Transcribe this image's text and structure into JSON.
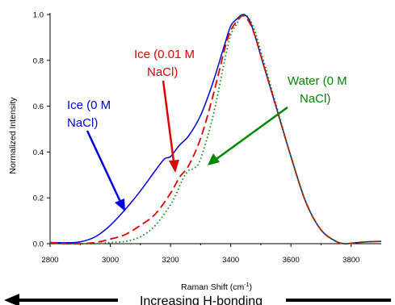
{
  "chart_data": {
    "type": "line",
    "title": "",
    "xlabel_main": "Raman Shift (cm",
    "xlabel_sup": "-1",
    "xlabel_end": ")",
    "ylabel": "Normalized Intensity",
    "xlim": [
      2800,
      3900
    ],
    "ylim": [
      0,
      1.0
    ],
    "xticks": [
      2800,
      3000,
      3200,
      3400,
      3600,
      3800
    ],
    "yticks": [
      0.0,
      0.2,
      0.4,
      0.6,
      0.8,
      1.0
    ],
    "xtick_labels": [
      "2800",
      "3000",
      "3200",
      "3400",
      "3600",
      "3800"
    ],
    "ytick_labels": [
      "0.0",
      "0.2",
      "0.4",
      "0.6",
      "0.8",
      "1.0"
    ],
    "series": [
      {
        "name": "Ice (0 M NaCl)",
        "color": "#0000dd",
        "style": "solid",
        "x": [
          2800,
          2850,
          2900,
          2950,
          3000,
          3050,
          3100,
          3150,
          3180,
          3200,
          3230,
          3260,
          3300,
          3340,
          3380,
          3400,
          3420,
          3440,
          3460,
          3480,
          3500,
          3550,
          3600,
          3650,
          3700,
          3750,
          3780,
          3800,
          3850,
          3900
        ],
        "y": [
          0.005,
          0.004,
          0.008,
          0.03,
          0.08,
          0.15,
          0.23,
          0.32,
          0.37,
          0.38,
          0.43,
          0.47,
          0.56,
          0.7,
          0.87,
          0.95,
          0.98,
          1.0,
          0.98,
          0.91,
          0.82,
          0.6,
          0.38,
          0.18,
          0.06,
          0.01,
          0.0,
          0.002,
          0.008,
          0.01
        ]
      },
      {
        "name": "Ice (0.01 M NaCl)",
        "color": "#dd0000",
        "style": "dashed",
        "x": [
          2800,
          2850,
          2900,
          2950,
          3000,
          3050,
          3100,
          3150,
          3200,
          3230,
          3260,
          3300,
          3340,
          3380,
          3400,
          3420,
          3440,
          3460,
          3480,
          3500,
          3550,
          3600,
          3650,
          3700,
          3750,
          3780,
          3800,
          3850,
          3900
        ],
        "y": [
          0.005,
          0.0,
          0.0,
          0.005,
          0.02,
          0.04,
          0.08,
          0.13,
          0.22,
          0.29,
          0.34,
          0.46,
          0.64,
          0.85,
          0.93,
          0.97,
          0.995,
          0.97,
          0.91,
          0.82,
          0.6,
          0.38,
          0.18,
          0.06,
          0.01,
          0.0,
          0.002,
          0.008,
          0.01
        ]
      },
      {
        "name": "Water (0 M NaCl)",
        "color": "#008800",
        "style": "dotted",
        "x": [
          2800,
          2850,
          2900,
          2950,
          3000,
          3050,
          3100,
          3150,
          3200,
          3220,
          3240,
          3260,
          3280,
          3300,
          3340,
          3380,
          3400,
          3420,
          3440,
          3460,
          3480,
          3500,
          3550,
          3600,
          3650,
          3700,
          3750,
          3780,
          3800,
          3850,
          3900
        ],
        "y": [
          0.0,
          0.0,
          0.0,
          0.0,
          0.005,
          0.01,
          0.03,
          0.08,
          0.17,
          0.22,
          0.28,
          0.32,
          0.33,
          0.37,
          0.55,
          0.8,
          0.91,
          0.96,
          1.0,
          0.985,
          0.93,
          0.84,
          0.61,
          0.38,
          0.18,
          0.06,
          0.01,
          0.0,
          0.002,
          0.008,
          0.01
        ]
      }
    ]
  },
  "annotations": {
    "ice0": [
      "Ice (0 M",
      "NaCl)"
    ],
    "ice001": [
      "Ice (0.01 M",
      "NaCl)"
    ],
    "water": [
      "Water (0 M",
      "NaCl)"
    ],
    "hbond": "Increasing H-bonding"
  }
}
